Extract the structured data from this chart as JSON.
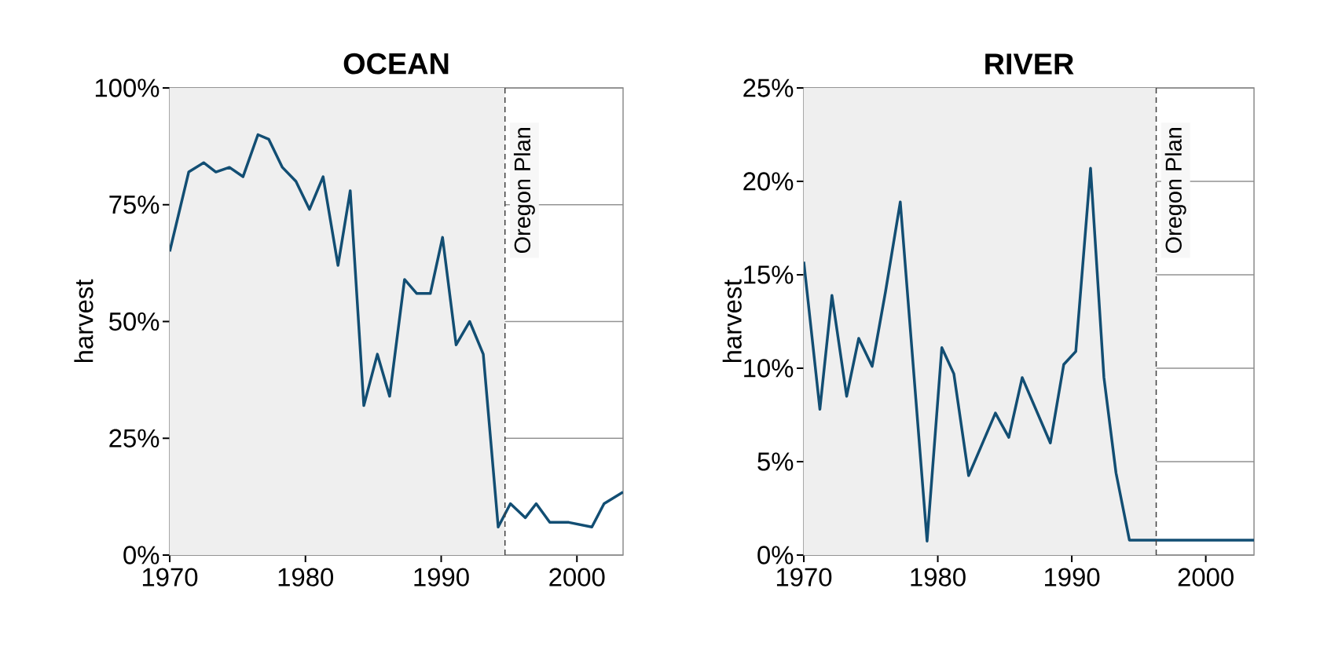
{
  "chart_data": [
    {
      "type": "line",
      "title": "OCEAN",
      "ylabel": "harvest",
      "x": [
        1970,
        1971.4,
        1972.5,
        1973.4,
        1974.4,
        1975.4,
        1976.5,
        1977.3,
        1978.3,
        1979.3,
        1980.3,
        1981.3,
        1982.4,
        1983.3,
        1984.3,
        1985.3,
        1986.2,
        1987.3,
        1988.2,
        1989.2,
        1990.1,
        1991.1,
        1992.1,
        1993.1,
        1994.2,
        1995.1,
        1996.2,
        1997.0,
        1998.0,
        1999.4,
        2001.1,
        2002.0,
        2003.4
      ],
      "values": [
        65,
        82,
        84,
        82,
        83,
        81,
        90,
        89,
        83,
        80,
        74,
        81,
        62,
        78,
        32,
        43,
        34,
        59,
        56,
        56,
        68,
        45,
        50,
        43,
        6,
        11,
        8,
        11,
        7,
        7,
        6,
        11,
        13.5
      ],
      "color": "#124e73",
      "xlim": [
        1970,
        2003.4
      ],
      "ylim": [
        0,
        100
      ],
      "xticks": [
        1970,
        1980,
        1990,
        2000
      ],
      "yticks": [
        {
          "value": 0,
          "label": "0%"
        },
        {
          "value": 25,
          "label": "25%"
        },
        {
          "value": 50,
          "label": "50%"
        },
        {
          "value": 75,
          "label": "75%"
        },
        {
          "value": 100,
          "label": "100%"
        }
      ],
      "grid": "y",
      "ref_lines": [
        {
          "axis": "x",
          "value": 1994.7,
          "label": "Oregon Plan",
          "line_style": "dashed"
        }
      ],
      "bands": [
        {
          "axis": "x",
          "from": 1970,
          "to": 1994.7,
          "color": "#efefef"
        }
      ]
    },
    {
      "type": "line",
      "title": "RIVER",
      "ylabel": "harvest",
      "x": [
        1970,
        1971.2,
        1972.1,
        1973.2,
        1974.1,
        1975.1,
        1976.1,
        1977.2,
        1979.2,
        1980.3,
        1981.2,
        1982.3,
        1984.3,
        1985.3,
        1986.3,
        1988.4,
        1989.4,
        1990.3,
        1991.4,
        1992.4,
        1993.3,
        1994.3,
        2003.6
      ],
      "values": [
        15.7,
        7.8,
        13.9,
        8.5,
        11.6,
        10.1,
        14.1,
        18.9,
        0.75,
        11.1,
        9.7,
        4.25,
        7.6,
        6.3,
        9.5,
        6.0,
        10.2,
        10.9,
        20.7,
        9.5,
        4.4,
        0.8,
        0.8
      ],
      "color": "#124e73",
      "xlim": [
        1970,
        2003.6
      ],
      "ylim": [
        0,
        25
      ],
      "xticks": [
        1970,
        1980,
        1990,
        2000
      ],
      "yticks": [
        {
          "value": 0,
          "label": "0%"
        },
        {
          "value": 5,
          "label": "5%"
        },
        {
          "value": 10,
          "label": "10%"
        },
        {
          "value": 15,
          "label": "15%"
        },
        {
          "value": 20,
          "label": "20%"
        },
        {
          "value": 25,
          "label": "25%"
        }
      ],
      "grid": "y",
      "ref_lines": [
        {
          "axis": "x",
          "value": 1996.3,
          "label": "Oregon Plan",
          "line_style": "dashed"
        }
      ],
      "bands": [
        {
          "axis": "x",
          "from": 1970,
          "to": 1996.3,
          "color": "#efefef"
        }
      ]
    }
  ]
}
